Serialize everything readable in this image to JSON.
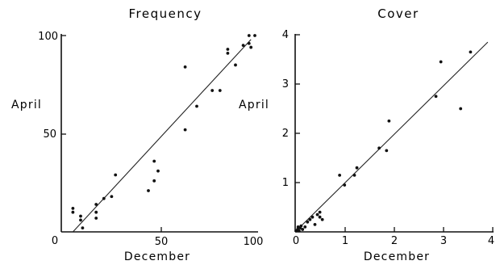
{
  "chart_data": [
    {
      "type": "scatter",
      "title": "Frequency",
      "xlabel": "December",
      "ylabel": "April",
      "xlim": [
        0,
        100
      ],
      "ylim": [
        0,
        100
      ],
      "x_ticks": [
        "0",
        "50",
        "100"
      ],
      "y_ticks": [
        "50",
        "100"
      ],
      "grid": false,
      "regression_line": {
        "x": [
          6,
          98
        ],
        "y": [
          0,
          98
        ]
      },
      "points": [
        {
          "x": 6,
          "y": 12
        },
        {
          "x": 6,
          "y": 10
        },
        {
          "x": 10,
          "y": 8
        },
        {
          "x": 10,
          "y": 6
        },
        {
          "x": 11,
          "y": 2
        },
        {
          "x": 18,
          "y": 14
        },
        {
          "x": 18,
          "y": 10
        },
        {
          "x": 18,
          "y": 7
        },
        {
          "x": 22,
          "y": 17
        },
        {
          "x": 26,
          "y": 18
        },
        {
          "x": 28,
          "y": 29
        },
        {
          "x": 45,
          "y": 21
        },
        {
          "x": 48,
          "y": 26
        },
        {
          "x": 48,
          "y": 36
        },
        {
          "x": 50,
          "y": 31
        },
        {
          "x": 64,
          "y": 52
        },
        {
          "x": 64,
          "y": 84
        },
        {
          "x": 70,
          "y": 64
        },
        {
          "x": 78,
          "y": 72
        },
        {
          "x": 82,
          "y": 72
        },
        {
          "x": 86,
          "y": 91
        },
        {
          "x": 86,
          "y": 93
        },
        {
          "x": 90,
          "y": 85
        },
        {
          "x": 94,
          "y": 95
        },
        {
          "x": 97,
          "y": 100
        },
        {
          "x": 97,
          "y": 96
        },
        {
          "x": 98,
          "y": 94
        },
        {
          "x": 100,
          "y": 100
        }
      ]
    },
    {
      "type": "scatter",
      "title": "Cover",
      "xlabel": "December",
      "ylabel": "April",
      "xlim": [
        0,
        4
      ],
      "ylim": [
        0,
        4
      ],
      "x_ticks": [
        "0",
        "1",
        "2",
        "3",
        "4"
      ],
      "y_ticks": [
        "1",
        "2",
        "3",
        "4"
      ],
      "grid": false,
      "regression_line": {
        "x": [
          0,
          3.9
        ],
        "y": [
          0,
          3.85
        ]
      },
      "points": [
        {
          "x": 0.02,
          "y": 0.02
        },
        {
          "x": 0.05,
          "y": 0.05
        },
        {
          "x": 0.06,
          "y": 0.1
        },
        {
          "x": 0.08,
          "y": 0.02
        },
        {
          "x": 0.1,
          "y": 0.08
        },
        {
          "x": 0.12,
          "y": 0.12
        },
        {
          "x": 0.15,
          "y": 0.05
        },
        {
          "x": 0.2,
          "y": 0.1
        },
        {
          "x": 0.25,
          "y": 0.2
        },
        {
          "x": 0.3,
          "y": 0.25
        },
        {
          "x": 0.35,
          "y": 0.3
        },
        {
          "x": 0.4,
          "y": 0.15
        },
        {
          "x": 0.45,
          "y": 0.35
        },
        {
          "x": 0.5,
          "y": 0.4
        },
        {
          "x": 0.5,
          "y": 0.3
        },
        {
          "x": 0.55,
          "y": 0.25
        },
        {
          "x": 0.9,
          "y": 1.15
        },
        {
          "x": 1.0,
          "y": 0.95
        },
        {
          "x": 1.2,
          "y": 1.15
        },
        {
          "x": 1.25,
          "y": 1.3
        },
        {
          "x": 1.7,
          "y": 1.7
        },
        {
          "x": 1.85,
          "y": 1.65
        },
        {
          "x": 1.9,
          "y": 2.25
        },
        {
          "x": 2.85,
          "y": 2.75
        },
        {
          "x": 2.95,
          "y": 3.45
        },
        {
          "x": 3.35,
          "y": 2.5
        },
        {
          "x": 3.55,
          "y": 3.65
        }
      ]
    }
  ]
}
